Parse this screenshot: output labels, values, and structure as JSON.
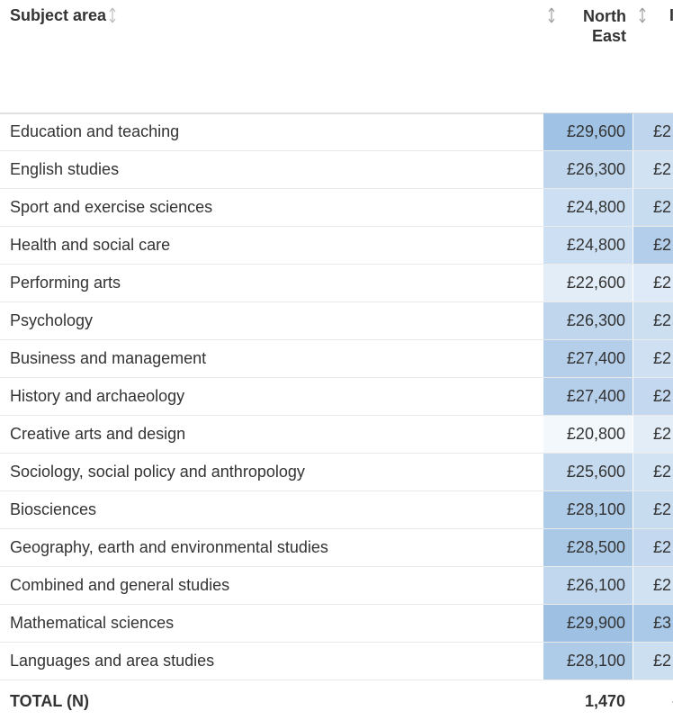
{
  "header": {
    "subject_label": "Subject area",
    "region_label_line1": "North",
    "region_label_line2": "East",
    "next_region_partial": "I"
  },
  "colors": {
    "scale_low": "#f3f8fd",
    "scale_high": "#9dc0e3"
  },
  "rows": [
    {
      "subject": "Education and teaching",
      "north_east": "£29,600",
      "next": "£2",
      "ne_value": 29600
    },
    {
      "subject": "English studies",
      "north_east": "£26,300",
      "next": "£2",
      "ne_value": 26300
    },
    {
      "subject": "Sport and exercise sciences",
      "north_east": "£24,800",
      "next": "£2",
      "ne_value": 24800
    },
    {
      "subject": "Health and social care",
      "north_east": "£24,800",
      "next": "£2",
      "ne_value": 24800
    },
    {
      "subject": "Performing arts",
      "north_east": "£22,600",
      "next": "£2",
      "ne_value": 22600
    },
    {
      "subject": "Psychology",
      "north_east": "£26,300",
      "next": "£2",
      "ne_value": 26300
    },
    {
      "subject": "Business and management",
      "north_east": "£27,400",
      "next": "£2",
      "ne_value": 27400
    },
    {
      "subject": "History and archaeology",
      "north_east": "£27,400",
      "next": "£2",
      "ne_value": 27400
    },
    {
      "subject": "Creative arts and design",
      "north_east": "£20,800",
      "next": "£2",
      "ne_value": 20800
    },
    {
      "subject": "Sociology, social policy and anthropology",
      "north_east": "£25,600",
      "next": "£2",
      "ne_value": 25600
    },
    {
      "subject": "Biosciences",
      "north_east": "£28,100",
      "next": "£2",
      "ne_value": 28100
    },
    {
      "subject": "Geography, earth and environmental studies",
      "north_east": "£28,500",
      "next": "£2",
      "ne_value": 28500
    },
    {
      "subject": "Combined and general studies",
      "north_east": "£26,100",
      "next": "£2",
      "ne_value": 26100
    },
    {
      "subject": "Mathematical sciences",
      "north_east": "£29,900",
      "next": "£3",
      "ne_value": 29900
    },
    {
      "subject": "Languages and area studies",
      "north_east": "£28,100",
      "next": "£2",
      "ne_value": 28100
    }
  ],
  "next_col_shades": [
    0.62,
    0.4,
    0.5,
    0.75,
    0.25,
    0.45,
    0.42,
    0.55,
    0.2,
    0.38,
    0.5,
    0.55,
    0.4,
    0.85,
    0.45
  ],
  "total": {
    "label": "TOTAL (N)",
    "north_east": "1,470",
    "next": "·"
  }
}
